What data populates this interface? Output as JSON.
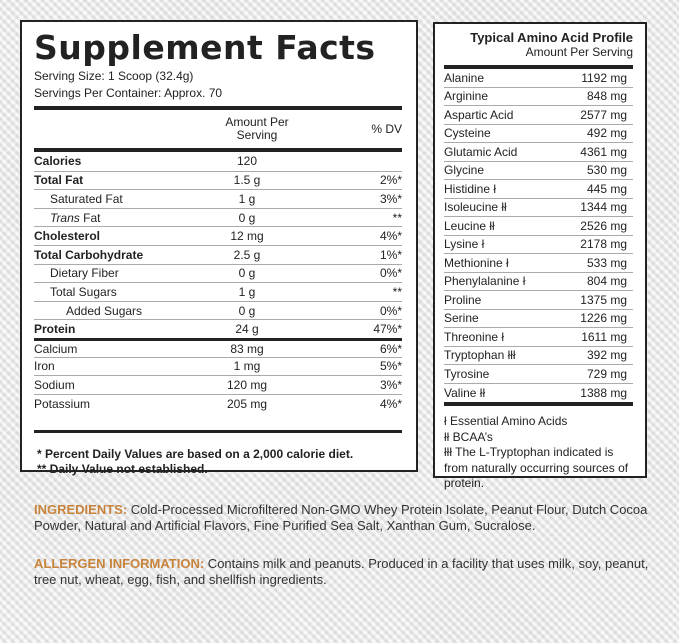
{
  "supplement_facts": {
    "title": "Supplement Facts",
    "serving_size": "Serving Size: 1 Scoop (32.4g)",
    "servings_per_container": "Servings Per Container: Approx. 70",
    "col_amount": "Amount Per Serving",
    "col_dv": "% DV",
    "rows": [
      {
        "name": "Calories",
        "amount": "120",
        "dv": ""
      },
      {
        "name": "Total Fat",
        "amount": "1.5 g",
        "dv": "2%*"
      },
      {
        "name": "Saturated Fat",
        "amount": "1 g",
        "dv": "3%*"
      },
      {
        "name_italic": "Trans",
        "name": "Fat",
        "amount": "0 g",
        "dv": "**"
      },
      {
        "name": "Cholesterol",
        "amount": "12 mg",
        "dv": "4%*"
      },
      {
        "name": "Total Carbohydrate",
        "amount": "2.5 g",
        "dv": "1%*"
      },
      {
        "name": "Dietary Fiber",
        "amount": "0 g",
        "dv": "0%*"
      },
      {
        "name": "Total Sugars",
        "amount": "1 g",
        "dv": "**"
      },
      {
        "name": "Added Sugars",
        "amount": "0 g",
        "dv": "0%*"
      },
      {
        "name": "Protein",
        "amount": "24 g",
        "dv": "47%*"
      },
      {
        "name": "Calcium",
        "amount": "83 mg",
        "dv": "6%*"
      },
      {
        "name": "Iron",
        "amount": "1 mg",
        "dv": "5%*"
      },
      {
        "name": "Sodium",
        "amount": "120 mg",
        "dv": "3%*"
      },
      {
        "name": "Potassium",
        "amount": "205 mg",
        "dv": "4%*"
      }
    ],
    "footnotes": [
      "* Percent Daily Values are based on a 2,000 calorie diet.",
      "** Daily Value not established."
    ]
  },
  "amino": {
    "title": "Typical Amino Acid Profile",
    "subtitle": "Amount Per Serving",
    "rows": [
      {
        "name": "Alanine",
        "amount": "1192 mg"
      },
      {
        "name": "Arginine",
        "amount": "848 mg"
      },
      {
        "name": "Aspartic Acid",
        "amount": "2577 mg"
      },
      {
        "name": "Cysteine",
        "amount": "492 mg"
      },
      {
        "name": "Glutamic Acid",
        "amount": "4361 mg"
      },
      {
        "name": "Glycine",
        "amount": "530 mg"
      },
      {
        "name": "Histidine ł",
        "amount": "445 mg"
      },
      {
        "name": "Isoleucine łł",
        "amount": "1344 mg"
      },
      {
        "name": "Leucine łł",
        "amount": "2526 mg"
      },
      {
        "name": "Lysine ł",
        "amount": "2178 mg"
      },
      {
        "name": "Methionine ł",
        "amount": "533 mg"
      },
      {
        "name": "Phenylalanine ł",
        "amount": "804 mg"
      },
      {
        "name": "Proline",
        "amount": "1375 mg"
      },
      {
        "name": "Serine",
        "amount": "1226 mg"
      },
      {
        "name": "Threonine ł",
        "amount": "1611 mg"
      },
      {
        "name": "Tryptophan łłł",
        "amount": "392 mg"
      },
      {
        "name": "Tyrosine",
        "amount": "729 mg"
      },
      {
        "name": "Valine łł",
        "amount": "1388 mg"
      }
    ],
    "footnotes": [
      "ł Essential Amino Acids",
      "łł BCAA’s",
      "łłł The L-Tryptophan indicated is from naturally occurring sources of protein."
    ]
  },
  "ingredients": {
    "label": "INGREDIENTS:",
    "text": " Cold-Processed Microfiltered Non-GMO Whey Protein Isolate, Peanut Flour, Dutch Cocoa Powder, Natural and Artificial Flavors, Fine Purified Sea Salt, Xanthan Gum, Sucralose."
  },
  "allergen": {
    "label": "ALLERGEN INFORMATION:",
    "text": " Contains milk and peanuts. Produced in a facility that uses milk, soy, peanut, tree nut, wheat, egg, fish, and shellfish ingredients."
  },
  "colors": {
    "label_orange": "#c8843c"
  }
}
